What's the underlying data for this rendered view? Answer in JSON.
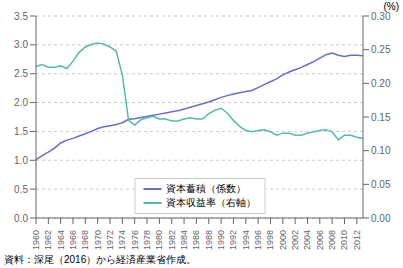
{
  "chart_data": {
    "type": "line",
    "x": [
      1960,
      1961,
      1962,
      1963,
      1964,
      1965,
      1966,
      1967,
      1968,
      1969,
      1970,
      1971,
      1972,
      1973,
      1974,
      1975,
      1976,
      1977,
      1978,
      1979,
      1980,
      1981,
      1982,
      1983,
      1984,
      1985,
      1986,
      1987,
      1988,
      1989,
      1990,
      1991,
      1992,
      1993,
      1994,
      1995,
      1996,
      1997,
      1998,
      1999,
      2000,
      2001,
      2002,
      2003,
      2004,
      2005,
      2006,
      2007,
      2008,
      2009,
      2010,
      2011,
      2012,
      2013
    ],
    "series": [
      {
        "name": "資本蓄積（係数）",
        "color": "#6b6bcc",
        "values": [
          1.01,
          1.08,
          1.14,
          1.21,
          1.3,
          1.35,
          1.38,
          1.42,
          1.46,
          1.5,
          1.55,
          1.58,
          1.6,
          1.62,
          1.65,
          1.71,
          1.72,
          1.74,
          1.76,
          1.78,
          1.8,
          1.82,
          1.84,
          1.86,
          1.89,
          1.92,
          1.95,
          1.98,
          2.01,
          2.05,
          2.09,
          2.12,
          2.15,
          2.17,
          2.19,
          2.21,
          2.26,
          2.31,
          2.36,
          2.41,
          2.48,
          2.53,
          2.57,
          2.61,
          2.66,
          2.71,
          2.77,
          2.83,
          2.86,
          2.82,
          2.8,
          2.82,
          2.82,
          2.81
        ]
      },
      {
        "name": "資本収益率（右軸）",
        "color": "#55bbaa",
        "axis": "y2",
        "values": [
          0.225,
          0.228,
          0.224,
          0.224,
          0.226,
          0.222,
          0.233,
          0.246,
          0.254,
          0.258,
          0.26,
          0.258,
          0.254,
          0.248,
          0.212,
          0.145,
          0.138,
          0.146,
          0.149,
          0.151,
          0.147,
          0.147,
          0.144,
          0.144,
          0.147,
          0.149,
          0.147,
          0.147,
          0.155,
          0.16,
          0.163,
          0.156,
          0.145,
          0.136,
          0.13,
          0.128,
          0.13,
          0.131,
          0.128,
          0.123,
          0.126,
          0.126,
          0.123,
          0.123,
          0.126,
          0.128,
          0.13,
          0.131,
          0.128,
          0.116,
          0.123,
          0.123,
          0.12,
          0.118
        ]
      }
    ],
    "xlim": [
      1960,
      2013
    ],
    "xticks": [
      1960,
      1962,
      1964,
      1966,
      1968,
      1970,
      1972,
      1974,
      1976,
      1978,
      1980,
      1982,
      1984,
      1986,
      1988,
      1990,
      1992,
      1994,
      1996,
      1998,
      2000,
      2002,
      2004,
      2006,
      2008,
      2010,
      2012
    ],
    "ylim": [
      0.0,
      3.5
    ],
    "yticks": [
      {
        "value": 0,
        "label": "0.0"
      },
      0.5,
      {
        "value": 1,
        "label": "1.0"
      },
      1.5,
      {
        "value": 2,
        "label": "2.0"
      },
      2.5,
      {
        "value": 3,
        "label": "3.0"
      },
      3.5
    ],
    "y2lim": [
      0.0,
      0.3
    ],
    "y2ticks": [
      {
        "value": 0,
        "label": "0.00"
      },
      0.05,
      {
        "value": 0.1,
        "label": "0.10"
      },
      0.15,
      {
        "value": 0.2,
        "label": "0.20"
      },
      0.25,
      {
        "value": 0.3,
        "label": "0.30"
      }
    ],
    "y2label": "(%)",
    "annotations": [
      "資料：深尾（2016）から経済産業省作成。"
    ],
    "grid": true,
    "legend": "bottom"
  }
}
